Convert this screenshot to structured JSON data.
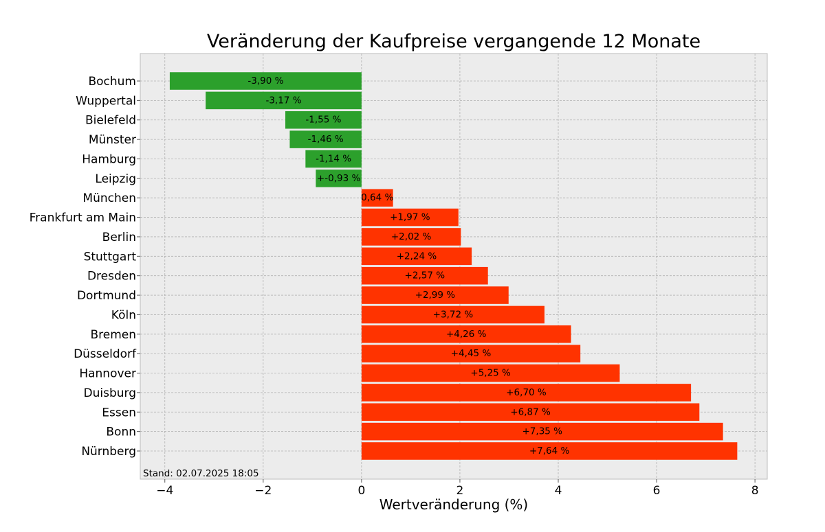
{
  "chart_data": {
    "type": "bar",
    "orientation": "horizontal",
    "title": "Veränderung der Kaufpreise vergangende 12 Monate",
    "xlabel": "Wertveränderung (%)",
    "ylabel": "",
    "xlim": [
      -4.5,
      8.25
    ],
    "xticks": [
      -4,
      -2,
      0,
      2,
      4,
      6,
      8
    ],
    "xtick_labels": [
      "−4",
      "−2",
      "0",
      "2",
      "4",
      "6",
      "8"
    ],
    "grid": true,
    "legend": "none",
    "colors": {
      "negative": "#2ca02c",
      "positive": "#ff3300",
      "background": "#ececec",
      "grid": "#b0b0b0"
    },
    "categories": [
      "Bochum",
      "Wuppertal",
      "Bielefeld",
      "Münster",
      "Hamburg",
      "Leipzig",
      "München",
      "Frankfurt am Main",
      "Berlin",
      "Stuttgart",
      "Dresden",
      "Dortmund",
      "Köln",
      "Bremen",
      "Düsseldorf",
      "Hannover",
      "Duisburg",
      "Essen",
      "Bonn",
      "Nürnberg"
    ],
    "values": [
      -3.9,
      -3.17,
      -1.55,
      -1.46,
      -1.14,
      -0.93,
      0.64,
      1.97,
      2.02,
      2.24,
      2.57,
      2.99,
      3.72,
      4.26,
      4.45,
      5.25,
      6.7,
      6.87,
      7.35,
      7.64
    ],
    "data_labels": [
      "-3,90 %",
      "-3,17 %",
      "-1,55 %",
      "-1,46 %",
      "-1,14 %",
      "+-0,93 %",
      "0,64 %",
      "+1,97 %",
      "+2,02 %",
      "+2,24 %",
      "+2,57 %",
      "+2,99 %",
      "+3,72 %",
      "+4,26 %",
      "+4,45 %",
      "+5,25 %",
      "+6,70 %",
      "+6,87 %",
      "+7,35 %",
      "+7,64 %"
    ],
    "annotation": "Stand: 02.07.2025 18:05"
  }
}
